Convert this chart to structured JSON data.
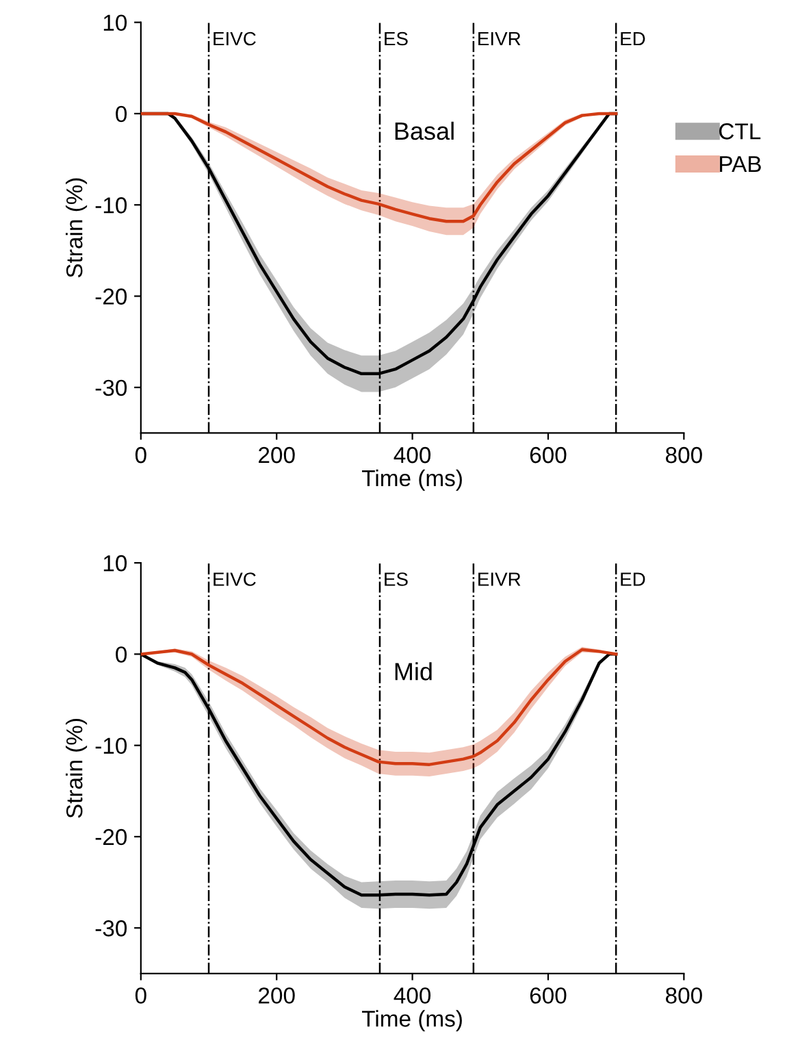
{
  "chart_data": [
    {
      "type": "line",
      "xlabel": "Time (ms)",
      "ylabel": "Strain (%)",
      "xlim": [
        0,
        800
      ],
      "ylim": [
        -35,
        10
      ],
      "xticks": [
        0,
        200,
        400,
        600,
        800
      ],
      "yticks": [
        -30,
        -20,
        -10,
        0,
        10
      ],
      "grid": false,
      "legend": "right",
      "annotations": [
        "Basal"
      ],
      "ref_lines": [
        {
          "axis": "x",
          "value": 100,
          "label": "EIVC",
          "color": "#000000",
          "line_style": "dashdot"
        },
        {
          "axis": "x",
          "value": 352,
          "label": "ES",
          "color": "#000000",
          "line_style": "dashdot"
        },
        {
          "axis": "x",
          "value": 490,
          "label": "EIVR",
          "color": "#000000",
          "line_style": "dashdot"
        },
        {
          "axis": "x",
          "value": 700,
          "label": "ED",
          "color": "#000000",
          "line_style": "dashdot"
        }
      ],
      "series": [
        {
          "name": "CTL",
          "color": "#000000",
          "x": [
            0,
            25,
            40,
            50,
            75,
            100,
            125,
            150,
            175,
            200,
            225,
            250,
            275,
            300,
            325,
            350,
            375,
            400,
            425,
            450,
            475,
            490,
            500,
            525,
            550,
            575,
            600,
            625,
            650,
            675,
            690,
            700
          ],
          "values": [
            0,
            0,
            0,
            -0.5,
            -3,
            -6,
            -9.5,
            -13,
            -16.5,
            -19.5,
            -22.5,
            -25,
            -26.8,
            -27.8,
            -28.5,
            -28.5,
            -28,
            -27,
            -26,
            -24.5,
            -22.5,
            -20.5,
            -19,
            -16,
            -13.5,
            -11,
            -9,
            -6.5,
            -4,
            -1.5,
            0,
            0
          ],
          "lower": [
            0,
            0,
            0,
            -0.7,
            -3.4,
            -6.6,
            -10.3,
            -14,
            -17.6,
            -20.7,
            -23.8,
            -26.5,
            -28.5,
            -29.7,
            -30.5,
            -30.5,
            -30,
            -29,
            -28,
            -26.4,
            -24.2,
            -21.9,
            -20.2,
            -17,
            -14.3,
            -11.7,
            -9.6,
            -7,
            -4.4,
            -1.7,
            0,
            0
          ],
          "upper": [
            0,
            0,
            0,
            -0.3,
            -2.6,
            -5.4,
            -8.7,
            -12,
            -15.4,
            -18.3,
            -21.2,
            -23.5,
            -25.1,
            -25.9,
            -26.5,
            -26.5,
            -26,
            -25,
            -24,
            -22.6,
            -20.8,
            -19.1,
            -17.8,
            -15,
            -12.7,
            -10.3,
            -8.4,
            -6,
            -3.6,
            -1.3,
            0,
            0
          ]
        },
        {
          "name": "PAB",
          "color": "#d23c14",
          "x": [
            0,
            25,
            50,
            75,
            100,
            125,
            150,
            175,
            200,
            225,
            250,
            275,
            300,
            325,
            350,
            375,
            400,
            425,
            450,
            475,
            490,
            500,
            525,
            550,
            575,
            600,
            625,
            650,
            675,
            700
          ],
          "values": [
            0,
            0,
            0,
            -0.3,
            -1.2,
            -2,
            -3,
            -4,
            -5,
            -6,
            -7,
            -8,
            -8.8,
            -9.5,
            -9.9,
            -10.5,
            -11,
            -11.5,
            -11.8,
            -11.8,
            -11.2,
            -10,
            -7.5,
            -5.5,
            -4,
            -2.5,
            -1,
            -0.2,
            0,
            0
          ],
          "lower": [
            0,
            0,
            0,
            -0.5,
            -1.5,
            -2.5,
            -3.6,
            -4.7,
            -5.8,
            -6.9,
            -8,
            -9,
            -9.9,
            -10.6,
            -11.1,
            -11.8,
            -12.3,
            -12.9,
            -13.3,
            -13.3,
            -12.5,
            -11,
            -8.3,
            -6.1,
            -4.5,
            -2.9,
            -1.3,
            -0.4,
            0,
            0
          ],
          "upper": [
            0,
            0,
            0,
            -0.1,
            -0.9,
            -1.5,
            -2.4,
            -3.3,
            -4.2,
            -5.1,
            -6,
            -7,
            -7.7,
            -8.4,
            -8.7,
            -9.2,
            -9.7,
            -10.1,
            -10.3,
            -10.3,
            -9.9,
            -9,
            -6.7,
            -4.9,
            -3.5,
            -2.1,
            -0.7,
            0,
            0,
            0
          ]
        }
      ]
    },
    {
      "type": "line",
      "xlabel": "Time (ms)",
      "ylabel": "Strain (%)",
      "xlim": [
        0,
        800
      ],
      "ylim": [
        -35,
        10
      ],
      "xticks": [
        0,
        200,
        400,
        600,
        800
      ],
      "yticks": [
        -30,
        -20,
        -10,
        0,
        10
      ],
      "grid": false,
      "annotations": [
        "Mid"
      ],
      "ref_lines": [
        {
          "axis": "x",
          "value": 100,
          "label": "EIVC",
          "color": "#000000",
          "line_style": "dashdot"
        },
        {
          "axis": "x",
          "value": 352,
          "label": "ES",
          "color": "#000000",
          "line_style": "dashdot"
        },
        {
          "axis": "x",
          "value": 490,
          "label": "EIVR",
          "color": "#000000",
          "line_style": "dashdot"
        },
        {
          "axis": "x",
          "value": 700,
          "label": "ED",
          "color": "#000000",
          "line_style": "dashdot"
        }
      ],
      "series": [
        {
          "color": "#000000",
          "x": [
            0,
            25,
            50,
            65,
            75,
            100,
            125,
            150,
            175,
            200,
            225,
            250,
            275,
            300,
            325,
            350,
            375,
            400,
            425,
            450,
            465,
            480,
            490,
            500,
            525,
            550,
            575,
            600,
            625,
            650,
            675,
            690,
            700
          ],
          "values": [
            0,
            -1,
            -1.5,
            -2,
            -2.8,
            -6,
            -9.5,
            -12.5,
            -15.5,
            -18,
            -20.5,
            -22.5,
            -24,
            -25.5,
            -26.4,
            -26.4,
            -26.3,
            -26.3,
            -26.4,
            -26.3,
            -25,
            -23,
            -21,
            -19,
            -16.5,
            -15,
            -13.5,
            -11.5,
            -8.5,
            -5,
            -1,
            0,
            0
          ],
          "lower": [
            0,
            -1.2,
            -1.9,
            -2.5,
            -3.4,
            -6.8,
            -10.3,
            -13.3,
            -16.3,
            -18.9,
            -21.4,
            -23.5,
            -25,
            -26.7,
            -27.8,
            -27.9,
            -27.8,
            -27.8,
            -27.9,
            -27.8,
            -26.5,
            -24.4,
            -22.3,
            -20.3,
            -17.9,
            -16.4,
            -14.8,
            -12.5,
            -9.3,
            -5.6,
            -1.3,
            0,
            0
          ],
          "upper": [
            0,
            -0.8,
            -1.1,
            -1.5,
            -2.2,
            -5.2,
            -8.7,
            -11.7,
            -14.7,
            -17.1,
            -19.6,
            -21.5,
            -23,
            -24.3,
            -25,
            -24.9,
            -24.8,
            -24.8,
            -24.9,
            -24.8,
            -23.5,
            -21.6,
            -19.7,
            -17.7,
            -15.1,
            -13.6,
            -12.2,
            -10.5,
            -7.7,
            -4.4,
            -0.7,
            0,
            0
          ]
        },
        {
          "color": "#d23c14",
          "x": [
            0,
            25,
            50,
            75,
            100,
            125,
            150,
            175,
            200,
            225,
            250,
            275,
            300,
            325,
            350,
            375,
            400,
            425,
            450,
            475,
            490,
            500,
            525,
            550,
            575,
            600,
            625,
            650,
            675,
            700
          ],
          "values": [
            0,
            0.2,
            0.4,
            0,
            -1.2,
            -2.2,
            -3.2,
            -4.4,
            -5.6,
            -6.8,
            -8,
            -9.2,
            -10.2,
            -11,
            -11.8,
            -12,
            -12,
            -12.1,
            -11.8,
            -11.5,
            -11.2,
            -10.8,
            -9.5,
            -7.5,
            -5,
            -2.8,
            -0.8,
            0.5,
            0.3,
            0
          ],
          "lower": [
            0,
            0.1,
            0.2,
            -0.3,
            -1.7,
            -2.9,
            -4,
            -5.3,
            -6.6,
            -7.8,
            -9.1,
            -10.3,
            -11.4,
            -12.2,
            -13.1,
            -13.3,
            -13.3,
            -13.4,
            -13.1,
            -12.8,
            -12.5,
            -12.1,
            -10.7,
            -8.6,
            -6,
            -3.6,
            -1.3,
            0.2,
            0.1,
            0
          ],
          "upper": [
            0,
            0.3,
            0.6,
            0.3,
            -0.7,
            -1.5,
            -2.4,
            -3.5,
            -4.6,
            -5.8,
            -6.9,
            -8.1,
            -9,
            -9.8,
            -10.5,
            -10.7,
            -10.7,
            -10.8,
            -10.5,
            -10.2,
            -9.9,
            -9.5,
            -8.3,
            -6.4,
            -4,
            -2,
            -0.3,
            0.8,
            0.5,
            0
          ]
        }
      ]
    }
  ]
}
